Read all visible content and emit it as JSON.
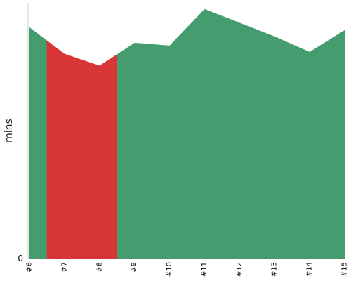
{
  "chart_data": {
    "type": "area",
    "ylabel": "mins",
    "x": [
      "#6",
      "#7",
      "#8",
      "#9",
      "#10",
      "#11",
      "#12",
      "#13",
      "#14",
      "#15"
    ],
    "values": [
      50.6,
      44.8,
      42.2,
      47.2,
      46.6,
      54.6,
      51.6,
      48.6,
      45.2,
      50.0
    ],
    "ylim": [
      0,
      56
    ],
    "y_ticks": [
      0
    ],
    "grid": false,
    "colors": {
      "normal": "#459c6e",
      "highlight": "#d83537",
      "axis": "#cfcfcf"
    },
    "highlight_range": [
      "#6.5",
      "#8.5"
    ]
  }
}
